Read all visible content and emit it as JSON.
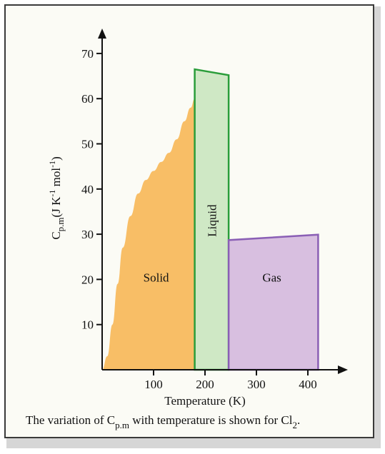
{
  "chart_data": {
    "type": "area",
    "xlabel": "Temperature (K)",
    "ylabel": {
      "main": "C",
      "sub": "p.m",
      "unit_prefix": "(J K",
      "sup1": "-1",
      "unit_mid": " mol",
      "sup2": "-1",
      "unit_suffix": ")"
    },
    "x_ticks": [
      "100",
      "200",
      "300",
      "400"
    ],
    "x_tick_values": [
      100,
      200,
      300,
      400
    ],
    "y_ticks": [
      "10",
      "20",
      "30",
      "40",
      "50",
      "60",
      "70"
    ],
    "y_tick_values": [
      10,
      20,
      30,
      40,
      50,
      60,
      70
    ],
    "xlim": [
      0,
      460
    ],
    "ylim": [
      0,
      75
    ],
    "grid": false,
    "series": [
      {
        "name": "Solid",
        "color": "#f7b859",
        "fill_opacity": 0.92,
        "x": [
          0,
          10,
          20,
          30,
          40,
          55,
          70,
          85,
          100,
          115,
          130,
          145,
          160,
          172,
          180
        ],
        "y": [
          0,
          3,
          10,
          19,
          27,
          34,
          39,
          42,
          44,
          46,
          48,
          51,
          55,
          58,
          60
        ]
      },
      {
        "name": "Liquid",
        "color": "#cfe8c5",
        "stroke": "#2a9d3a",
        "x": [
          180,
          246
        ],
        "y": [
          66.5,
          65.2
        ]
      },
      {
        "name": "Gas",
        "color": "#d8bfe0",
        "stroke": "#8a5fb5",
        "x": [
          246,
          420
        ],
        "y": [
          28.7,
          29.9
        ]
      }
    ]
  },
  "caption": {
    "prefix": "The variation of C",
    "sub": "p.m",
    "middle": " with temperature is shown for Cl",
    "sub2": "2",
    "suffix": "."
  }
}
